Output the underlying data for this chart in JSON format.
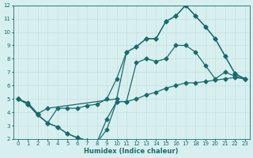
{
  "xlabel": "Humidex (Indice chaleur)",
  "bg_color": "#d8eff0",
  "line_color": "#1a6b6b",
  "grid_color": "#b8d8da",
  "xlim": [
    -0.5,
    23.5
  ],
  "ylim": [
    2,
    12
  ],
  "xticks": [
    0,
    1,
    2,
    3,
    4,
    5,
    6,
    7,
    8,
    9,
    10,
    11,
    12,
    13,
    14,
    15,
    16,
    17,
    18,
    19,
    20,
    21,
    22,
    23
  ],
  "yticks": [
    2,
    3,
    4,
    5,
    6,
    7,
    8,
    9,
    10,
    11,
    12
  ],
  "line1_x": [
    0,
    1,
    2,
    3,
    10,
    11,
    12,
    13,
    14,
    15,
    16,
    17,
    18,
    19,
    20,
    21,
    22,
    23
  ],
  "line1_y": [
    5,
    4.7,
    3.9,
    4.3,
    5.0,
    8.5,
    8.9,
    9.5,
    9.5,
    10.8,
    11.2,
    12.0,
    11.2,
    10.4,
    9.5,
    8.2,
    6.9,
    6.5
  ],
  "line2_x": [
    0,
    1,
    2,
    3,
    4,
    5,
    6,
    7,
    8,
    9,
    10,
    11,
    12,
    13,
    14,
    15,
    16,
    17,
    18,
    19,
    20,
    21,
    22,
    23
  ],
  "line2_y": [
    5.0,
    4.6,
    3.8,
    3.2,
    4.3,
    4.3,
    4.3,
    4.5,
    4.6,
    5.0,
    6.5,
    8.5,
    8.9,
    9.5,
    9.5,
    10.8,
    11.2,
    12.0,
    11.2,
    10.4,
    9.5,
    8.2,
    6.9,
    6.5
  ],
  "line3_x": [
    0,
    1,
    2,
    3,
    4,
    5,
    6,
    7,
    8,
    9,
    10,
    11,
    12,
    13,
    14,
    15,
    16,
    17,
    18,
    19,
    20,
    21,
    22,
    23
  ],
  "line3_y": [
    5.0,
    4.6,
    3.8,
    3.2,
    2.9,
    2.4,
    2.1,
    1.9,
    1.75,
    2.7,
    4.8,
    4.8,
    7.7,
    8.0,
    7.8,
    8.0,
    9.0,
    9.0,
    8.5,
    7.5,
    6.5,
    7.0,
    6.7,
    6.5
  ],
  "line4_x": [
    0,
    1,
    2,
    3,
    4,
    5,
    6,
    7,
    8,
    9,
    10,
    11,
    12,
    13,
    14,
    15,
    16,
    17,
    18,
    19,
    20,
    21,
    22,
    23
  ],
  "line4_y": [
    5.0,
    4.6,
    3.8,
    3.2,
    2.9,
    2.4,
    2.1,
    1.9,
    1.75,
    3.5,
    4.8,
    4.8,
    5.0,
    5.3,
    5.5,
    5.8,
    6.0,
    6.2,
    6.2,
    6.3,
    6.4,
    6.5,
    6.6,
    6.5
  ],
  "marker": "D",
  "markersize": 2.5,
  "linewidth": 0.9,
  "tick_fontsize": 5.0,
  "xlabel_fontsize": 6.0
}
